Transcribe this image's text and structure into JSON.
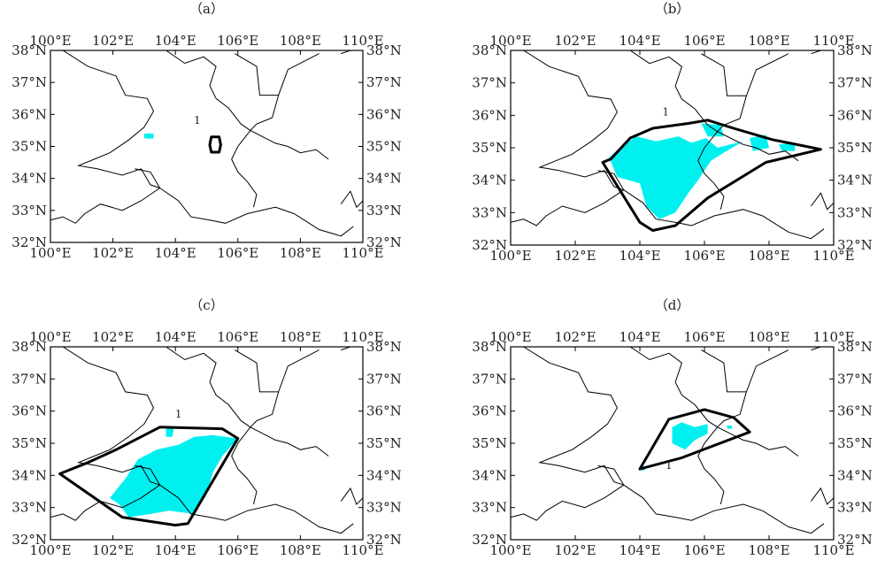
{
  "colors": {
    "shade": "#00f0f0",
    "line": "#000000"
  },
  "panels": [
    {
      "label": "（a）",
      "x_ticks": [
        "100°E",
        "102°E",
        "104°E",
        "106°E",
        "108°E",
        "110°E"
      ],
      "y_ticks": [
        "38°N",
        "37°N",
        "36°N",
        "35°N",
        "34°N",
        "33°N",
        "32°N"
      ],
      "contour_labels": [
        "1"
      ]
    },
    {
      "label": "（b）",
      "x_ticks": [
        "100°E",
        "102°E",
        "104°E",
        "106°E",
        "108°E",
        "110°E"
      ],
      "y_ticks": [
        "38°N",
        "37°N",
        "36°N",
        "35°N",
        "34°N",
        "33°N",
        "32°N"
      ],
      "contour_labels": [
        "1"
      ]
    },
    {
      "label": "（c）",
      "x_ticks": [
        "100°E",
        "102°E",
        "104°E",
        "106°E",
        "108°E",
        "110°E"
      ],
      "y_ticks": [
        "38°N",
        "37°N",
        "36°N",
        "35°N",
        "34°N",
        "33°N",
        "32°N"
      ],
      "contour_labels": [
        "1"
      ]
    },
    {
      "label": "（d）",
      "x_ticks": [
        "100°E",
        "102°E",
        "104°E",
        "106°E",
        "108°E",
        "110°E"
      ],
      "y_ticks": [
        "38°N",
        "37°N",
        "36°N",
        "35°N",
        "34°N",
        "33°N",
        "32°N"
      ],
      "contour_labels": [
        "1"
      ]
    }
  ]
}
